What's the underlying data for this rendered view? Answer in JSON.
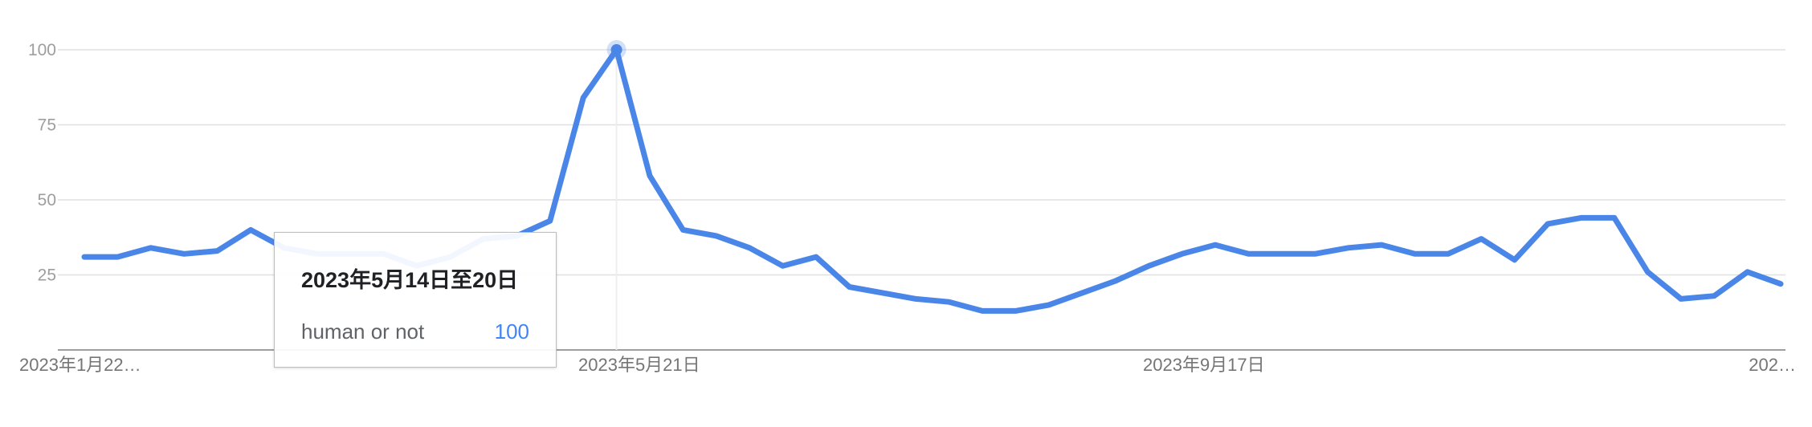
{
  "chart_data": {
    "type": "line",
    "title": "",
    "xlabel": "",
    "ylabel": "",
    "ylim": [
      0,
      100
    ],
    "y_ticks": [
      25,
      50,
      75,
      100
    ],
    "x_tick_labels": [
      "2023年1月22…",
      "2023年5月21日",
      "2023年9月17日",
      "202…"
    ],
    "grid": true,
    "line_color": "#4a86e8",
    "series": [
      {
        "name": "human or not",
        "values": [
          31,
          31,
          34,
          32,
          33,
          40,
          34,
          32,
          32,
          32,
          28,
          31,
          37,
          38,
          43,
          84,
          100,
          58,
          40,
          38,
          34,
          28,
          31,
          21,
          19,
          17,
          16,
          13,
          13,
          15,
          19,
          23,
          28,
          32,
          35,
          32,
          32,
          32,
          34,
          35,
          32,
          32,
          37,
          30,
          42,
          44,
          44,
          26,
          17,
          18,
          26,
          22
        ]
      }
    ],
    "highlight_index": 16
  },
  "tooltip": {
    "title": "2023年5月14日至20日",
    "series_label": "human or not",
    "value": "100",
    "value_color": "#4285f4"
  }
}
